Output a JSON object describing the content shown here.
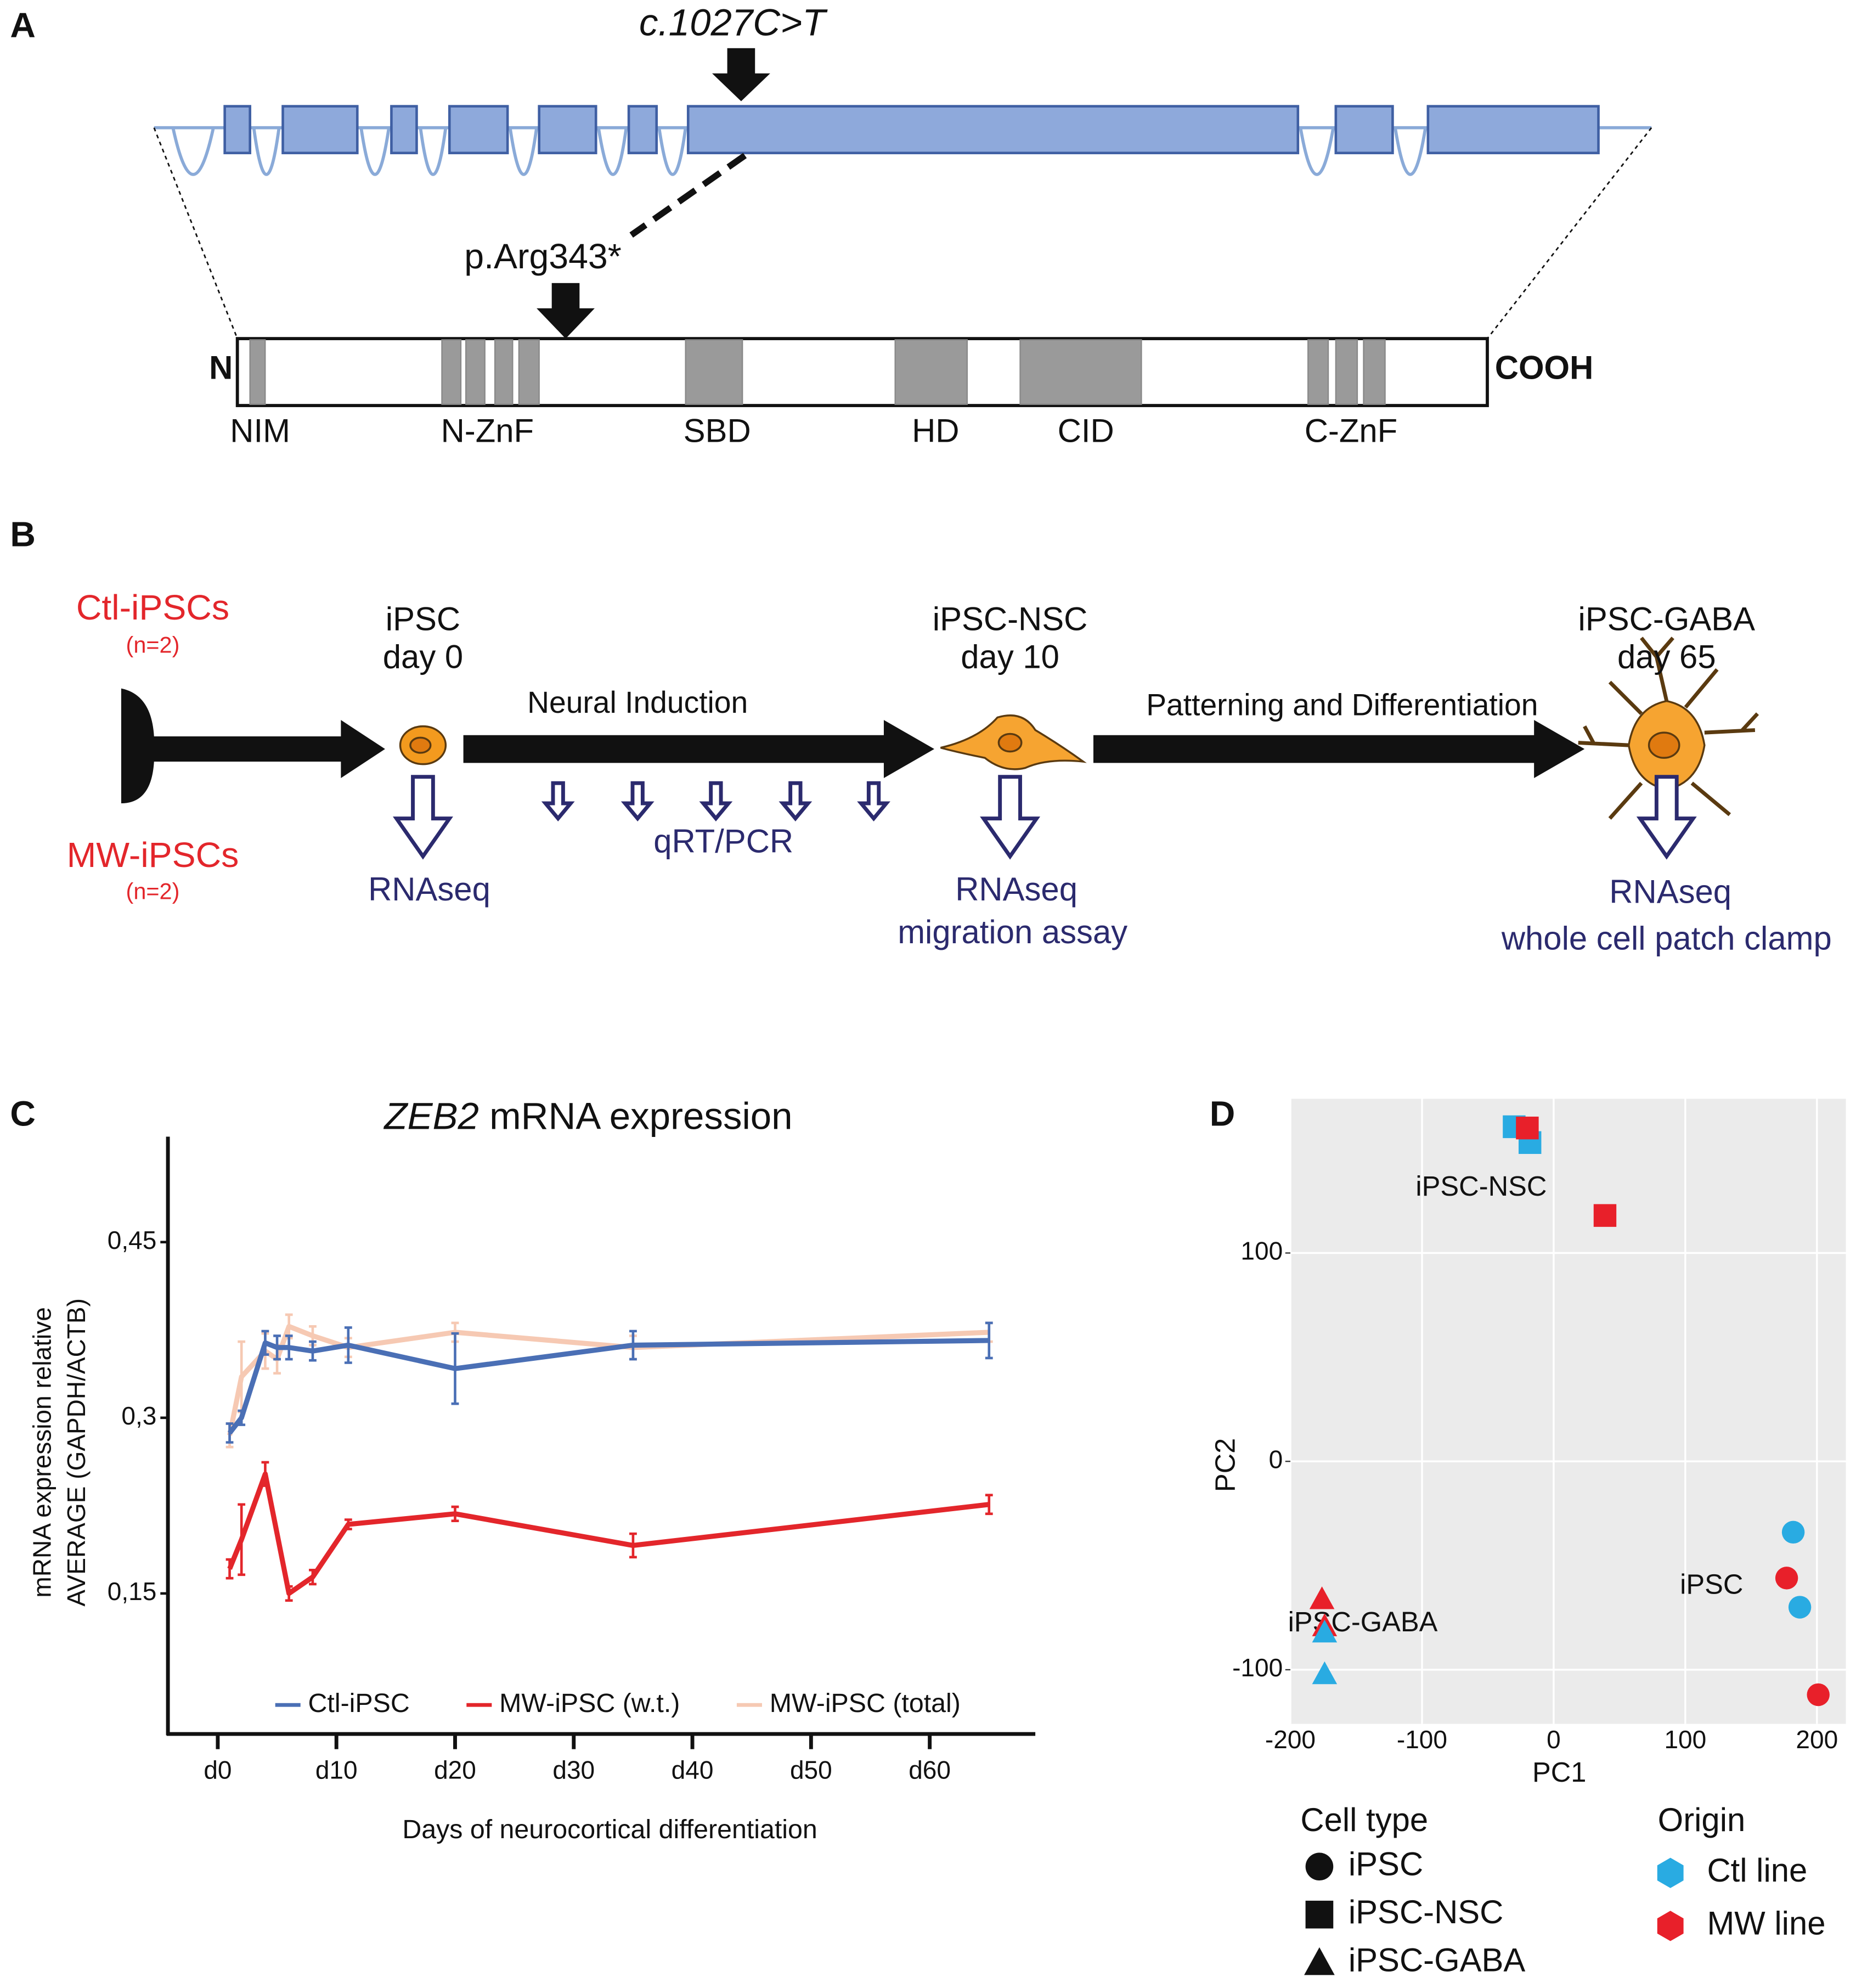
{
  "panels": [
    "A",
    "B",
    "C",
    "D"
  ],
  "gene_diagram": {
    "mutation": "c.1027C>T",
    "protein_change": "p.Arg343*",
    "n_terminus": "N",
    "c_terminus": "COOH",
    "domains": [
      "NIM",
      "N-ZnF",
      "SBD",
      "HD",
      "CID",
      "C-ZnF"
    ]
  },
  "workflow": {
    "control_lines": "Ctl-iPSCs",
    "control_n": "(n=2)",
    "mw_lines": "MW-iPSCs",
    "mw_n": "(n=2)",
    "stages": [
      {
        "name": "iPSC",
        "day": "day 0"
      },
      {
        "name": "iPSC-NSC",
        "day": "day 10"
      },
      {
        "name": "iPSC-GABA",
        "day": "day 65"
      }
    ],
    "steps": [
      "Neural Induction",
      "Patterning and Differentiation"
    ],
    "assays": {
      "ipsc": "RNAseq",
      "induction": "qRT/PCR",
      "nsc": [
        "RNAseq",
        "migration assay"
      ],
      "gaba": [
        "RNAseq",
        "whole cell patch clamp"
      ]
    }
  },
  "chart_data": [
    {
      "type": "line",
      "title_gene": "ZEB2",
      "title": "mRNA expression",
      "x_label": "Days of neurocortical differentiation",
      "y_label": [
        "mRNA expression relative",
        "AVERAGE (GAPDH/ACTB)"
      ],
      "xlim": [
        -4.2,
        68.9
      ],
      "ylim": [
        0.03,
        0.54
      ],
      "xticks": [
        {
          "value": 0,
          "label": "d0"
        },
        {
          "value": 10,
          "label": "d10"
        },
        {
          "value": 20,
          "label": "d20"
        },
        {
          "value": 30,
          "label": "d30"
        },
        {
          "value": 40,
          "label": "d40"
        },
        {
          "value": 50,
          "label": "d50"
        },
        {
          "value": 60,
          "label": "d60"
        }
      ],
      "yticks": [
        {
          "value": 0.15,
          "label": "0,15"
        },
        {
          "value": 0.3,
          "label": "0,3"
        },
        {
          "value": 0.45,
          "label": "0,45"
        }
      ],
      "series": [
        {
          "name": "MW-iPSC (total)",
          "color": "#f6c9b3",
          "x": [
            1,
            2,
            4,
            5,
            6,
            8,
            11,
            20,
            35,
            65
          ],
          "values": [
            0.285,
            0.335,
            0.357,
            0.35,
            0.378,
            0.37,
            0.36,
            0.373,
            0.36,
            0.373
          ],
          "errors": [
            0.01,
            0.03,
            0.015,
            0.012,
            0.01,
            0.008,
            0.008,
            0.008,
            0.01,
            0.008
          ]
        },
        {
          "name": "Ctl-iPSC",
          "color": "#4a6fb5",
          "x": [
            1,
            2,
            4,
            5,
            6,
            8,
            11,
            20,
            35,
            65
          ],
          "values": [
            0.287,
            0.3,
            0.364,
            0.36,
            0.36,
            0.357,
            0.362,
            0.342,
            0.362,
            0.366
          ],
          "errors": [
            0.008,
            0.006,
            0.01,
            0.01,
            0.01,
            0.008,
            0.015,
            0.03,
            0.012,
            0.015
          ]
        },
        {
          "name": "MW-iPSC (w.t.)",
          "color": "#e3262b",
          "x": [
            1,
            2,
            4,
            6,
            8,
            11,
            20,
            35,
            65
          ],
          "values": [
            0.171,
            0.196,
            0.252,
            0.15,
            0.164,
            0.209,
            0.218,
            0.191,
            0.226
          ],
          "errors": [
            0.008,
            0.03,
            0.01,
            0.006,
            0.006,
            0.004,
            0.006,
            0.01,
            0.008
          ]
        }
      ],
      "legend_order": [
        1,
        2,
        0
      ]
    },
    {
      "type": "scatter",
      "x_label": "PC1",
      "y_label": "PC2",
      "xlim": [
        -200,
        222
      ],
      "ylim": [
        -126,
        174
      ],
      "xticks": [
        -200,
        -100,
        0,
        100,
        200
      ],
      "yticks": [
        -100,
        0,
        100
      ],
      "grid": true,
      "annotations": [
        {
          "text": "iPSC-NSC",
          "x": -55,
          "y": 131
        },
        {
          "text": "iPSC",
          "x": 120,
          "y": -60
        },
        {
          "text": "iPSC-GABA",
          "x": -145,
          "y": -78
        }
      ],
      "cell_type_title": "Cell type",
      "origin_title": "Origin",
      "cell_types": [
        {
          "name": "iPSC",
          "shape": "circle"
        },
        {
          "name": "iPSC-NSC",
          "shape": "square"
        },
        {
          "name": "iPSC-GABA",
          "shape": "triangle"
        }
      ],
      "origins": [
        {
          "name": "Ctl line",
          "color": "#29abe2"
        },
        {
          "name": "MW line",
          "color": "#e8202a"
        }
      ],
      "series": [
        {
          "cell_type": 1,
          "origin": 0,
          "x": [
            -30,
            -18
          ],
          "y": [
            160.6,
            153
          ]
        },
        {
          "cell_type": 1,
          "origin": 1,
          "x": [
            -20,
            39
          ],
          "y": [
            160,
            118
          ]
        },
        {
          "cell_type": 0,
          "origin": 0,
          "x": [
            182,
            187
          ],
          "y": [
            -34,
            -70
          ]
        },
        {
          "cell_type": 0,
          "origin": 1,
          "x": [
            177,
            201
          ],
          "y": [
            -56,
            -112
          ]
        },
        {
          "cell_type": 2,
          "origin": 1,
          "x": [
            -176,
            -174
          ],
          "y": [
            -66,
            -79
          ]
        },
        {
          "cell_type": 2,
          "origin": 0,
          "x": [
            -174,
            -174
          ],
          "y": [
            -82,
            -102
          ]
        }
      ]
    }
  ]
}
